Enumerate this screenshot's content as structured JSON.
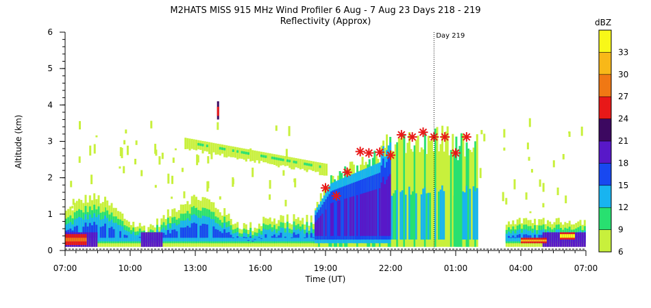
{
  "chart_data": {
    "type": "heatmap",
    "title": "M2HATS MISS 915 MHz Wind Profiler   6 Aug -  7 Aug 23 Days 218 - 219",
    "subtitle": "Reflectivity (Approx)",
    "xlabel": "Time (UT)",
    "ylabel": "Altitude (km)",
    "x_tick_labels": [
      "07:00",
      "10:00",
      "13:00",
      "16:00",
      "19:00",
      "22:00",
      "01:00",
      "04:00",
      "07:00"
    ],
    "x_tick_hours": [
      0,
      3,
      6,
      9,
      12,
      15,
      18,
      21,
      24
    ],
    "xlim_hours": [
      0,
      24
    ],
    "y_ticks": [
      0,
      1,
      2,
      3,
      4,
      5,
      6
    ],
    "ylim": [
      0,
      6
    ],
    "day_marker": {
      "label": "Day 219",
      "hour": 17
    },
    "colorbar": {
      "unit": "dBZ",
      "tick_labels": [
        "6",
        "9",
        "12",
        "15",
        "18",
        "21",
        "24",
        "27",
        "30",
        "33"
      ],
      "colors": [
        "#c8f03c",
        "#28e070",
        "#18b4f0",
        "#1848f0",
        "#5818c8",
        "#3c0860",
        "#e81818",
        "#f07814",
        "#f8b818",
        "#f8f818"
      ]
    },
    "stars": [
      {
        "hour": 12.0,
        "alt": 1.72
      },
      {
        "hour": 12.5,
        "alt": 1.5
      },
      {
        "hour": 13.0,
        "alt": 2.15
      },
      {
        "hour": 13.6,
        "alt": 2.72
      },
      {
        "hour": 14.0,
        "alt": 2.68
      },
      {
        "hour": 14.5,
        "alt": 2.7
      },
      {
        "hour": 15.0,
        "alt": 2.62
      },
      {
        "hour": 15.5,
        "alt": 3.18
      },
      {
        "hour": 16.0,
        "alt": 3.12
      },
      {
        "hour": 16.5,
        "alt": 3.25
      },
      {
        "hour": 17.0,
        "alt": 3.12
      },
      {
        "hour": 17.5,
        "alt": 3.12
      },
      {
        "hour": 18.0,
        "alt": 2.68
      },
      {
        "hour": 18.5,
        "alt": 3.12
      }
    ]
  }
}
